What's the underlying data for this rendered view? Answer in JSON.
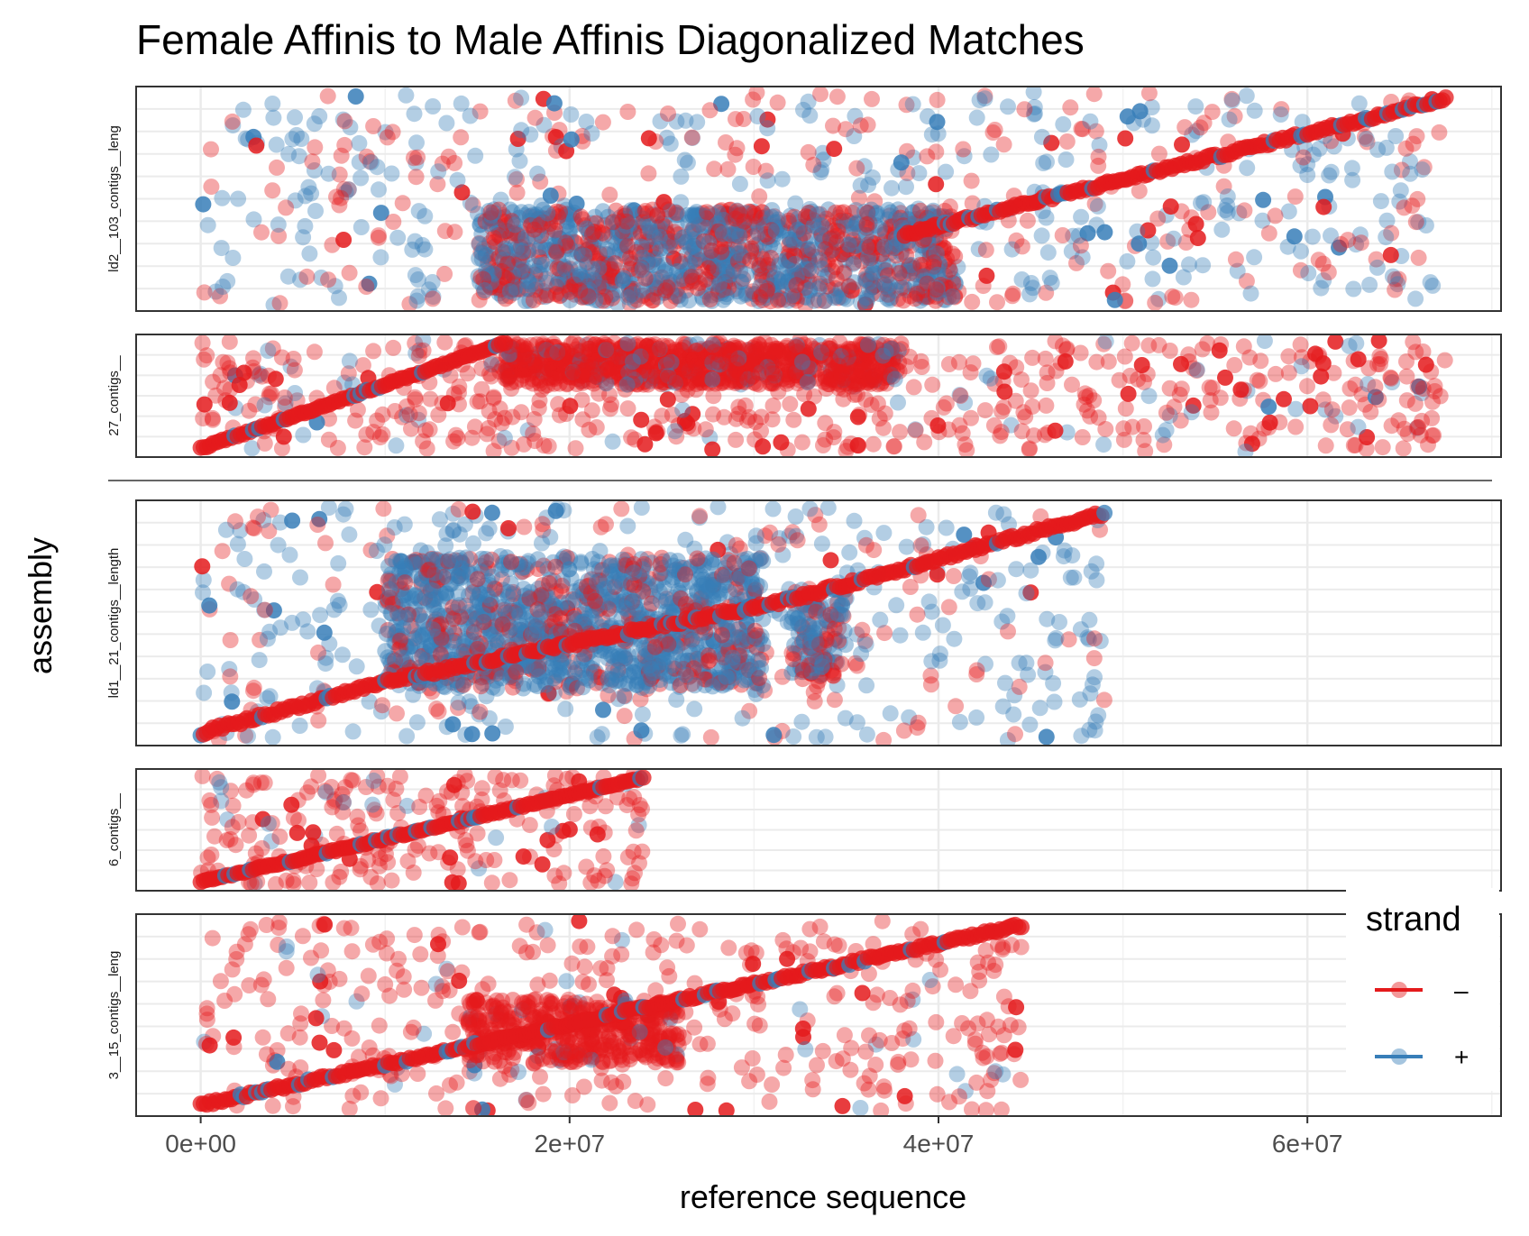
{
  "chart_data": {
    "type": "scatter",
    "title": "Female Affinis to Male Affinis Diagonalized Matches",
    "xlabel": "reference sequence",
    "ylabel": "assembly",
    "xlim": [
      -3500000,
      70500000
    ],
    "x_ticks": [
      {
        "value": 0,
        "label": "0e+00"
      },
      {
        "value": 20000000,
        "label": "2e+07"
      },
      {
        "value": 40000000,
        "label": "4e+07"
      },
      {
        "value": 60000000,
        "label": "6e+07"
      }
    ],
    "x_minor_ticks": [
      10000000,
      30000000,
      50000000,
      70000000
    ],
    "grid": true,
    "legend": {
      "title": "strand",
      "placement": "right",
      "entries": [
        {
          "label": "–",
          "strand": "-",
          "color": "#e41a1c"
        },
        {
          "label": "+",
          "strand": "+",
          "color": "#377eb8"
        }
      ]
    },
    "colors": {
      "minus": "#e41a1c",
      "plus": "#377eb8"
    },
    "panels": [
      {
        "name": "ld2__103_contigs__leng",
        "strip_label": "ld2__103_contigs__leng",
        "x_max": 67500000,
        "diagonal": [
          [
            38000000,
            0.33
          ],
          [
            67500000,
            0.97
          ]
        ],
        "diagonal_strand": "-",
        "plus_fraction": 0.58,
        "block": {
          "x": [
            15000000,
            41000000
          ],
          "y": [
            0.02,
            0.45
          ],
          "plus_fraction": 0.55
        },
        "extra_blocks": [],
        "scatter_density": 1.0
      },
      {
        "name": "27_contigs__",
        "strip_label": "27_contigs__",
        "x_max": 67500000,
        "diagonal": [
          [
            0,
            0.03
          ],
          [
            16500000,
            0.97
          ]
        ],
        "diagonal_strand": "-",
        "plus_fraction": 0.12,
        "block": {
          "x": [
            16500000,
            38000000
          ],
          "y": [
            0.6,
            0.97
          ],
          "plus_fraction": 0.12
        },
        "extra_blocks": [],
        "scatter_density": 0.9
      },
      {
        "name": "ld1__21_contigs__length",
        "strip_label": "ld1__21_contigs__length",
        "x_max": 49000000,
        "diagonal": [
          [
            0,
            0.03
          ],
          [
            10000000,
            0.25
          ],
          [
            32000000,
            0.6
          ],
          [
            49000000,
            0.97
          ]
        ],
        "diagonal_strand": "-",
        "plus_fraction": 0.62,
        "block": {
          "x": [
            10000000,
            30500000
          ],
          "y": [
            0.22,
            0.78
          ],
          "plus_fraction": 0.72
        },
        "extra_blocks": [
          {
            "x": [
              32000000,
              35000000
            ],
            "y": [
              0.25,
              0.65
            ],
            "plus_fraction": 0.68
          }
        ],
        "scatter_density": 1.0
      },
      {
        "name": "6_contigs__",
        "strip_label": "6_contigs__",
        "x_max": 24000000,
        "diagonal": [
          [
            0,
            0.03
          ],
          [
            24000000,
            0.97
          ]
        ],
        "diagonal_strand": "-",
        "plus_fraction": 0.06,
        "block": null,
        "extra_blocks": [],
        "scatter_density": 0.65
      },
      {
        "name": "3__15_contigs__leng",
        "strip_label": "3__15_contigs__leng",
        "x_max": 44500000,
        "diagonal": [
          [
            0,
            0.03
          ],
          [
            44500000,
            0.97
          ]
        ],
        "diagonal_strand": "-",
        "plus_fraction": 0.06,
        "block": {
          "x": [
            14500000,
            26000000
          ],
          "y": [
            0.25,
            0.58
          ],
          "plus_fraction": 0.04
        },
        "extra_blocks": [],
        "scatter_density": 0.85
      }
    ]
  }
}
